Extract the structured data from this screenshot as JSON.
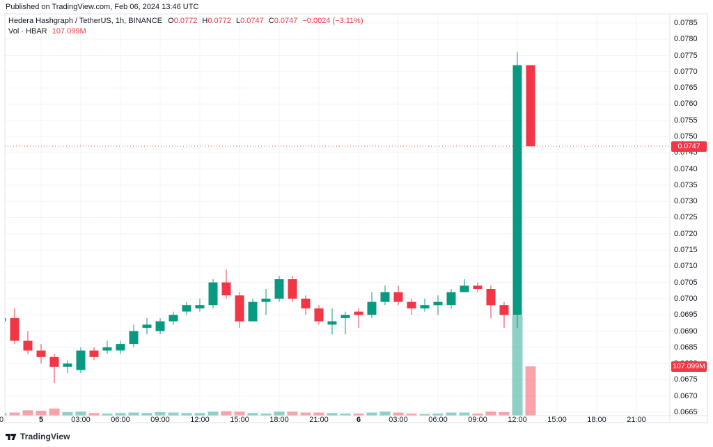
{
  "published_line": "Published on TradingView.com, Feb 06, 2024 13:46 UTC",
  "legend": {
    "title": "Hedera Hashgraph / TetherUS, 1h, BINANCE",
    "ohlc": [
      {
        "letter": "O",
        "value": "0.0772"
      },
      {
        "letter": "H",
        "value": "0.0772"
      },
      {
        "letter": "L",
        "value": "0.0747"
      },
      {
        "letter": "C",
        "value": "0.0747"
      }
    ],
    "change": "−0.0024 (−3.11%)",
    "volume_label": "Vol · HBAR",
    "volume_value": "107.099M"
  },
  "price_axis": {
    "labels": [
      "0.0785",
      "0.0780",
      "0.0775",
      "0.0770",
      "0.0765",
      "0.0760",
      "0.0755",
      "0.0750",
      "0.0745",
      "0.0740",
      "0.0735",
      "0.0730",
      "0.0725",
      "0.0720",
      "0.0715",
      "0.0710",
      "0.0705",
      "0.0700",
      "0.0695",
      "0.0690",
      "0.0685",
      "0.0680",
      "0.0675",
      "0.0670",
      "0.0665"
    ],
    "price_badge": "0.0747",
    "volume_badge": "107.099M"
  },
  "time_axis": {
    "ticks": [
      {
        "label": "0",
        "i": 0,
        "bold": false
      },
      {
        "label": "5",
        "i": 3,
        "bold": true
      },
      {
        "label": "03:00",
        "i": 6,
        "bold": false
      },
      {
        "label": "06:00",
        "i": 9,
        "bold": false
      },
      {
        "label": "09:00",
        "i": 12,
        "bold": false
      },
      {
        "label": "12:00",
        "i": 15,
        "bold": false
      },
      {
        "label": "15:00",
        "i": 18,
        "bold": false
      },
      {
        "label": "18:00",
        "i": 21,
        "bold": false
      },
      {
        "label": "21:00",
        "i": 24,
        "bold": false
      },
      {
        "label": "6",
        "i": 27,
        "bold": true
      },
      {
        "label": "03:00",
        "i": 30,
        "bold": false
      },
      {
        "label": "06:00",
        "i": 33,
        "bold": false
      },
      {
        "label": "09:00",
        "i": 36,
        "bold": false
      },
      {
        "label": "12:00",
        "i": 39,
        "bold": false
      },
      {
        "label": "15:00",
        "i": 42,
        "bold": false
      },
      {
        "label": "18:00",
        "i": 45,
        "bold": false
      },
      {
        "label": "21:00",
        "i": 48,
        "bold": false
      }
    ]
  },
  "footer": {
    "brand": "TradingView"
  },
  "colors": {
    "up": "#089981",
    "down": "#f23645",
    "vol_up": "rgba(8,153,129,0.45)",
    "vol_down": "rgba(242,54,69,0.45)",
    "grid": "#f0f3fa",
    "border": "#e0e3eb",
    "text": "#131722",
    "badge": "#f23645",
    "price_line": "#f23645"
  },
  "chart_data": {
    "type": "candlestick",
    "symbol": "Hedera Hashgraph / TetherUS",
    "interval": "1h",
    "exchange": "BINANCE",
    "last_price": 0.0747,
    "last_change": -0.0024,
    "last_change_pct": -3.11,
    "last_volume_millions": 107.099,
    "price_axis_top": 0.0785,
    "price_axis_bottom": 0.0665,
    "price_axis_step": 0.0005,
    "volume_unit": "M",
    "candles": [
      {
        "t": "Feb 4 21:00",
        "o": 0.0693,
        "h": 0.0695,
        "l": 0.0692,
        "c": 0.0694,
        "v": 5
      },
      {
        "t": "Feb 4 22:00",
        "o": 0.0694,
        "h": 0.0697,
        "l": 0.0686,
        "c": 0.0687,
        "v": 6
      },
      {
        "t": "Feb 4 23:00",
        "o": 0.0687,
        "h": 0.069,
        "l": 0.0683,
        "c": 0.0684,
        "v": 11
      },
      {
        "t": "Feb 5 00:00",
        "o": 0.0684,
        "h": 0.0686,
        "l": 0.068,
        "c": 0.0682,
        "v": 10
      },
      {
        "t": "Feb 5 01:00",
        "o": 0.0682,
        "h": 0.0683,
        "l": 0.0674,
        "c": 0.0679,
        "v": 15
      },
      {
        "t": "Feb 5 02:00",
        "o": 0.0679,
        "h": 0.0681,
        "l": 0.0677,
        "c": 0.068,
        "v": 7
      },
      {
        "t": "Feb 5 03:00",
        "o": 0.0678,
        "h": 0.0685,
        "l": 0.0677,
        "c": 0.0684,
        "v": 8
      },
      {
        "t": "Feb 5 04:00",
        "o": 0.0684,
        "h": 0.0685,
        "l": 0.0681,
        "c": 0.0682,
        "v": 5
      },
      {
        "t": "Feb 5 05:00",
        "o": 0.0684,
        "h": 0.0687,
        "l": 0.0683,
        "c": 0.0685,
        "v": 4
      },
      {
        "t": "Feb 5 06:00",
        "o": 0.0684,
        "h": 0.0687,
        "l": 0.0683,
        "c": 0.0686,
        "v": 5
      },
      {
        "t": "Feb 5 07:00",
        "o": 0.0686,
        "h": 0.0692,
        "l": 0.0685,
        "c": 0.069,
        "v": 6
      },
      {
        "t": "Feb 5 08:00",
        "o": 0.0691,
        "h": 0.0694,
        "l": 0.0689,
        "c": 0.0692,
        "v": 5
      },
      {
        "t": "Feb 5 09:00",
        "o": 0.069,
        "h": 0.0694,
        "l": 0.0689,
        "c": 0.0693,
        "v": 7
      },
      {
        "t": "Feb 5 10:00",
        "o": 0.0693,
        "h": 0.0696,
        "l": 0.0692,
        "c": 0.0695,
        "v": 6
      },
      {
        "t": "Feb 5 11:00",
        "o": 0.0696,
        "h": 0.0699,
        "l": 0.0695,
        "c": 0.0698,
        "v": 5
      },
      {
        "t": "Feb 5 12:00",
        "o": 0.0697,
        "h": 0.07,
        "l": 0.0696,
        "c": 0.0698,
        "v": 5
      },
      {
        "t": "Feb 5 13:00",
        "o": 0.0698,
        "h": 0.0706,
        "l": 0.0697,
        "c": 0.0705,
        "v": 8
      },
      {
        "t": "Feb 5 14:00",
        "o": 0.0705,
        "h": 0.0709,
        "l": 0.07,
        "c": 0.0701,
        "v": 9
      },
      {
        "t": "Feb 5 15:00",
        "o": 0.0701,
        "h": 0.0702,
        "l": 0.0691,
        "c": 0.0693,
        "v": 8
      },
      {
        "t": "Feb 5 16:00",
        "o": 0.0693,
        "h": 0.07,
        "l": 0.0693,
        "c": 0.0699,
        "v": 5
      },
      {
        "t": "Feb 5 17:00",
        "o": 0.0699,
        "h": 0.0703,
        "l": 0.0695,
        "c": 0.07,
        "v": 4
      },
      {
        "t": "Feb 5 18:00",
        "o": 0.07,
        "h": 0.0707,
        "l": 0.0699,
        "c": 0.0706,
        "v": 8
      },
      {
        "t": "Feb 5 19:00",
        "o": 0.0706,
        "h": 0.0707,
        "l": 0.0699,
        "c": 0.07,
        "v": 8
      },
      {
        "t": "Feb 5 20:00",
        "o": 0.07,
        "h": 0.0701,
        "l": 0.0695,
        "c": 0.0697,
        "v": 6
      },
      {
        "t": "Feb 5 21:00",
        "o": 0.0697,
        "h": 0.0698,
        "l": 0.0692,
        "c": 0.0693,
        "v": 6
      },
      {
        "t": "Feb 5 22:00",
        "o": 0.0692,
        "h": 0.0697,
        "l": 0.0689,
        "c": 0.0693,
        "v": 5
      },
      {
        "t": "Feb 5 23:00",
        "o": 0.0694,
        "h": 0.0696,
        "l": 0.0689,
        "c": 0.0695,
        "v": 4
      },
      {
        "t": "Feb 6 00:00",
        "o": 0.0696,
        "h": 0.0697,
        "l": 0.0691,
        "c": 0.0695,
        "v": 4
      },
      {
        "t": "Feb 6 01:00",
        "o": 0.0695,
        "h": 0.0702,
        "l": 0.0694,
        "c": 0.0699,
        "v": 6
      },
      {
        "t": "Feb 6 02:00",
        "o": 0.0699,
        "h": 0.0704,
        "l": 0.0698,
        "c": 0.0702,
        "v": 8
      },
      {
        "t": "Feb 6 03:00",
        "o": 0.0702,
        "h": 0.0704,
        "l": 0.0698,
        "c": 0.0699,
        "v": 6
      },
      {
        "t": "Feb 6 04:00",
        "o": 0.0699,
        "h": 0.07,
        "l": 0.0695,
        "c": 0.0697,
        "v": 4
      },
      {
        "t": "Feb 6 05:00",
        "o": 0.0697,
        "h": 0.07,
        "l": 0.0696,
        "c": 0.0698,
        "v": 3
      },
      {
        "t": "Feb 6 06:00",
        "o": 0.0698,
        "h": 0.0701,
        "l": 0.0695,
        "c": 0.0699,
        "v": 4
      },
      {
        "t": "Feb 6 07:00",
        "o": 0.0698,
        "h": 0.0703,
        "l": 0.0697,
        "c": 0.0702,
        "v": 6
      },
      {
        "t": "Feb 6 08:00",
        "o": 0.0702,
        "h": 0.0706,
        "l": 0.0702,
        "c": 0.0704,
        "v": 6
      },
      {
        "t": "Feb 6 09:00",
        "o": 0.0704,
        "h": 0.0705,
        "l": 0.0702,
        "c": 0.0703,
        "v": 4
      },
      {
        "t": "Feb 6 10:00",
        "o": 0.0703,
        "h": 0.0704,
        "l": 0.0694,
        "c": 0.0698,
        "v": 8
      },
      {
        "t": "Feb 6 11:00",
        "o": 0.0698,
        "h": 0.0699,
        "l": 0.0691,
        "c": 0.0695,
        "v": 7
      },
      {
        "t": "Feb 6 12:00",
        "o": 0.0695,
        "h": 0.0776,
        "l": 0.0691,
        "c": 0.0772,
        "v": 219
      },
      {
        "t": "Feb 6 13:00",
        "o": 0.0772,
        "h": 0.0772,
        "l": 0.0747,
        "c": 0.0747,
        "v": 107.099
      }
    ]
  }
}
